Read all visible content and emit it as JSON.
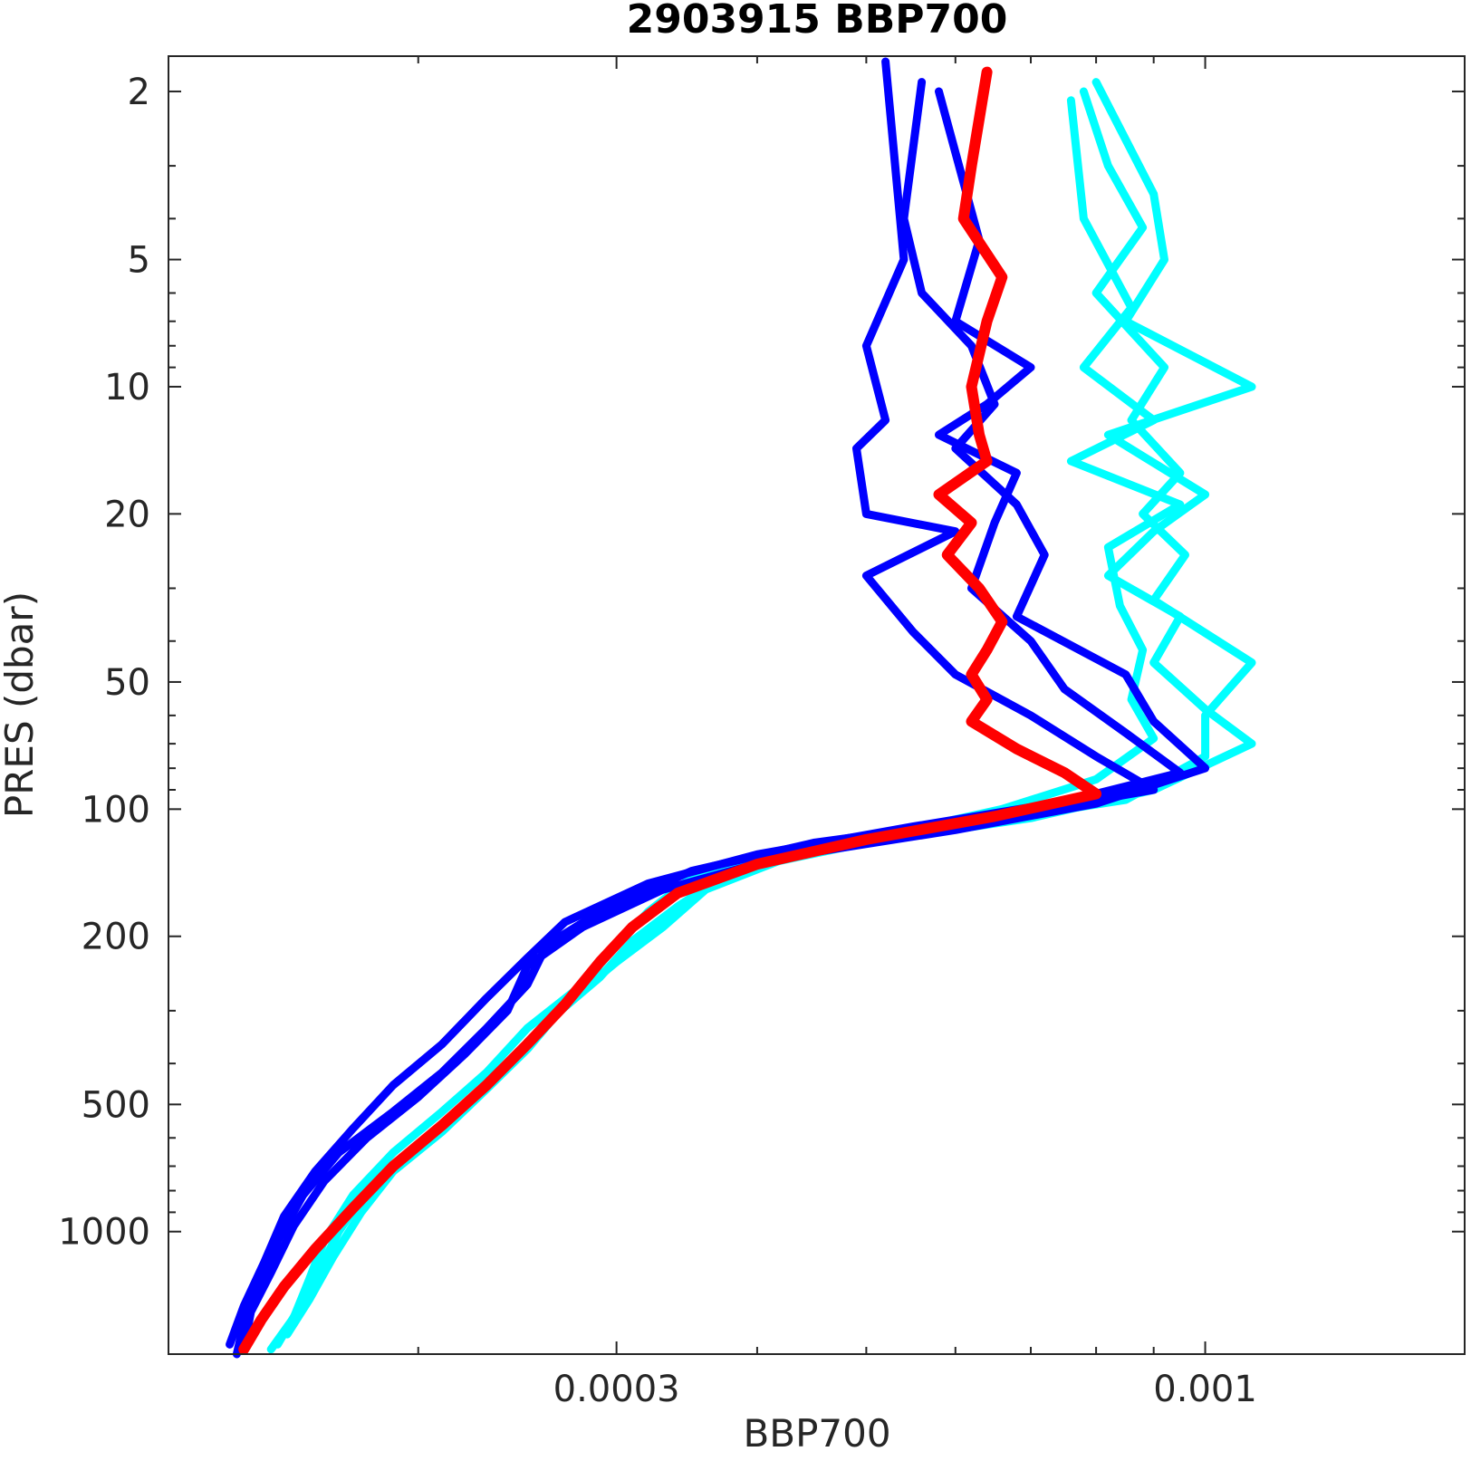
{
  "chart_data": {
    "type": "line",
    "title": "2903915 BBP700",
    "xlabel": "BBP700",
    "ylabel": "PRES (dbar)",
    "xscale": "log",
    "yscale": "log",
    "yreversed": true,
    "xlim": [
      0.00012,
      0.0017
    ],
    "ylim": [
      1.65,
      1950
    ],
    "grid": false,
    "legend": "none",
    "xticks": [
      {
        "value": 0.0003,
        "label": "0.0003"
      },
      {
        "value": 0.001,
        "label": "0.001"
      }
    ],
    "xminor": [
      0.0002,
      0.0004,
      0.0005,
      0.0006,
      0.0007,
      0.0008,
      0.0009
    ],
    "yticks": [
      {
        "value": 2,
        "label": "2"
      },
      {
        "value": 5,
        "label": "5"
      },
      {
        "value": 10,
        "label": "10"
      },
      {
        "value": 20,
        "label": "20"
      },
      {
        "value": 50,
        "label": "50"
      },
      {
        "value": 100,
        "label": "100"
      },
      {
        "value": 200,
        "label": "200"
      },
      {
        "value": 500,
        "label": "500"
      },
      {
        "value": 1000,
        "label": "1000"
      }
    ],
    "yminor": [
      3,
      4,
      6,
      7,
      8,
      9,
      30,
      40,
      60,
      70,
      80,
      90,
      300,
      400,
      600,
      700,
      800,
      900
    ],
    "series": [
      {
        "color": "#00ffff",
        "width": 9,
        "points": [
          [
            0.00078,
            2
          ],
          [
            0.00082,
            3
          ],
          [
            0.00088,
            4.2
          ],
          [
            0.0008,
            6
          ],
          [
            0.00092,
            9
          ],
          [
            0.00086,
            12
          ],
          [
            0.00095,
            16
          ],
          [
            0.00088,
            20
          ],
          [
            0.00096,
            25
          ],
          [
            0.0009,
            32
          ],
          [
            0.0011,
            45
          ],
          [
            0.001,
            60
          ],
          [
            0.001,
            75
          ],
          [
            0.00085,
            95
          ],
          [
            0.0006,
            110
          ],
          [
            0.00045,
            125
          ],
          [
            0.00035,
            145
          ],
          [
            0.00032,
            175
          ],
          [
            0.0003,
            210
          ],
          [
            0.00028,
            260
          ],
          [
            0.00025,
            330
          ],
          [
            0.00023,
            420
          ],
          [
            0.00021,
            520
          ],
          [
            0.00019,
            650
          ],
          [
            0.000175,
            820
          ],
          [
            0.000165,
            1050
          ],
          [
            0.00016,
            1300
          ],
          [
            0.000155,
            1600
          ],
          [
            0.000148,
            1900
          ]
        ]
      },
      {
        "color": "#00ffff",
        "width": 9,
        "points": [
          [
            0.0008,
            1.9
          ],
          [
            0.0009,
            3.5
          ],
          [
            0.00092,
            5
          ],
          [
            0.00085,
            7
          ],
          [
            0.0011,
            10
          ],
          [
            0.00082,
            13
          ],
          [
            0.001,
            18
          ],
          [
            0.0009,
            22
          ],
          [
            0.00082,
            28
          ],
          [
            0.00095,
            35
          ],
          [
            0.0009,
            45
          ],
          [
            0.001,
            58
          ],
          [
            0.0011,
            70
          ],
          [
            0.0009,
            90
          ],
          [
            0.0007,
            105
          ],
          [
            0.0005,
            120
          ],
          [
            0.00038,
            140
          ],
          [
            0.00034,
            170
          ],
          [
            0.00031,
            205
          ],
          [
            0.00029,
            250
          ],
          [
            0.00026,
            320
          ],
          [
            0.00024,
            400
          ],
          [
            0.00022,
            500
          ],
          [
            0.0002,
            640
          ],
          [
            0.00018,
            800
          ],
          [
            0.00017,
            1000
          ],
          [
            0.000163,
            1250
          ],
          [
            0.000156,
            1550
          ],
          [
            0.00015,
            1850
          ]
        ]
      },
      {
        "color": "#00ffff",
        "width": 9,
        "points": [
          [
            0.00076,
            2.1
          ],
          [
            0.00078,
            4
          ],
          [
            0.00086,
            6.5
          ],
          [
            0.00078,
            9
          ],
          [
            0.0009,
            12
          ],
          [
            0.00076,
            15
          ],
          [
            0.00095,
            19
          ],
          [
            0.00082,
            24
          ],
          [
            0.00084,
            33
          ],
          [
            0.00088,
            42
          ],
          [
            0.00086,
            55
          ],
          [
            0.0009,
            68
          ],
          [
            0.0008,
            85
          ],
          [
            0.00066,
            100
          ],
          [
            0.00052,
            115
          ],
          [
            0.00042,
            132
          ],
          [
            0.00036,
            155
          ],
          [
            0.00033,
            190
          ],
          [
            0.0003,
            230
          ],
          [
            0.00027,
            290
          ],
          [
            0.00025,
            370
          ],
          [
            0.00023,
            460
          ],
          [
            0.00021,
            580
          ],
          [
            0.00019,
            720
          ],
          [
            0.000178,
            900
          ],
          [
            0.000168,
            1150
          ],
          [
            0.00016,
            1450
          ],
          [
            0.000153,
            1750
          ]
        ]
      },
      {
        "color": "#0000ff",
        "width": 9,
        "points": [
          [
            0.00052,
            1.7
          ],
          [
            0.00054,
            5
          ],
          [
            0.0005,
            8
          ],
          [
            0.00052,
            12
          ],
          [
            0.00049,
            14
          ],
          [
            0.0005,
            20
          ],
          [
            0.0006,
            22
          ],
          [
            0.0005,
            28
          ],
          [
            0.00055,
            38
          ],
          [
            0.0006,
            48
          ],
          [
            0.0007,
            60
          ],
          [
            0.0008,
            75
          ],
          [
            0.0009,
            90
          ],
          [
            0.00065,
            105
          ],
          [
            0.00045,
            120
          ],
          [
            0.00035,
            140
          ],
          [
            0.00029,
            175
          ],
          [
            0.00026,
            210
          ],
          [
            0.00025,
            260
          ],
          [
            0.00023,
            330
          ],
          [
            0.00021,
            420
          ],
          [
            0.00019,
            520
          ],
          [
            0.00017,
            650
          ],
          [
            0.000158,
            820
          ],
          [
            0.00015,
            1050
          ],
          [
            0.000145,
            1350
          ],
          [
            0.00014,
            1650
          ],
          [
            0.000138,
            1950
          ]
        ]
      },
      {
        "color": "#0000ff",
        "width": 9,
        "points": [
          [
            0.00056,
            1.9
          ],
          [
            0.00054,
            4
          ],
          [
            0.00056,
            6
          ],
          [
            0.00062,
            8
          ],
          [
            0.00065,
            11
          ],
          [
            0.0006,
            14
          ],
          [
            0.00068,
            19
          ],
          [
            0.00072,
            25
          ],
          [
            0.00068,
            35
          ],
          [
            0.00085,
            48
          ],
          [
            0.0009,
            62
          ],
          [
            0.001,
            80
          ],
          [
            0.0008,
            97
          ],
          [
            0.0006,
            112
          ],
          [
            0.00042,
            130
          ],
          [
            0.00033,
            155
          ],
          [
            0.00028,
            190
          ],
          [
            0.00025,
            235
          ],
          [
            0.00024,
            300
          ],
          [
            0.00022,
            380
          ],
          [
            0.0002,
            480
          ],
          [
            0.00018,
            600
          ],
          [
            0.000165,
            760
          ],
          [
            0.000155,
            970
          ],
          [
            0.000148,
            1250
          ],
          [
            0.000142,
            1550
          ],
          [
            0.00014,
            1900
          ]
        ]
      },
      {
        "color": "#0000ff",
        "width": 9,
        "points": [
          [
            0.00058,
            2
          ],
          [
            0.00063,
            4.5
          ],
          [
            0.0006,
            7
          ],
          [
            0.0007,
            9
          ],
          [
            0.00064,
            11
          ],
          [
            0.00058,
            13
          ],
          [
            0.00068,
            16
          ],
          [
            0.00065,
            21
          ],
          [
            0.00062,
            30
          ],
          [
            0.0007,
            40
          ],
          [
            0.00075,
            52
          ],
          [
            0.00085,
            66
          ],
          [
            0.00095,
            82
          ],
          [
            0.00075,
            96
          ],
          [
            0.00055,
            110
          ],
          [
            0.0004,
            128
          ],
          [
            0.00032,
            150
          ],
          [
            0.00027,
            185
          ],
          [
            0.00025,
            225
          ],
          [
            0.00023,
            280
          ],
          [
            0.00021,
            360
          ],
          [
            0.00019,
            450
          ],
          [
            0.000175,
            570
          ],
          [
            0.000162,
            720
          ],
          [
            0.000152,
            920
          ],
          [
            0.000146,
            1180
          ],
          [
            0.00014,
            1500
          ],
          [
            0.000136,
            1850
          ]
        ]
      },
      {
        "color": "#ff0000",
        "width": 12,
        "points": [
          [
            0.00064,
            1.8
          ],
          [
            0.00062,
            3
          ],
          [
            0.00061,
            4
          ],
          [
            0.00066,
            5.5
          ],
          [
            0.00064,
            7
          ],
          [
            0.00062,
            10
          ],
          [
            0.00063,
            13
          ],
          [
            0.00064,
            15
          ],
          [
            0.00058,
            18
          ],
          [
            0.00062,
            21
          ],
          [
            0.00059,
            25
          ],
          [
            0.00063,
            30
          ],
          [
            0.00066,
            36
          ],
          [
            0.00064,
            42
          ],
          [
            0.00062,
            48
          ],
          [
            0.00064,
            55
          ],
          [
            0.00062,
            62
          ],
          [
            0.00068,
            72
          ],
          [
            0.00075,
            82
          ],
          [
            0.0008,
            92
          ],
          [
            0.00065,
            104
          ],
          [
            0.0005,
            118
          ],
          [
            0.0004,
            135
          ],
          [
            0.00034,
            158
          ],
          [
            0.00031,
            190
          ],
          [
            0.00029,
            230
          ],
          [
            0.00027,
            290
          ],
          [
            0.00025,
            360
          ],
          [
            0.00023,
            450
          ],
          [
            0.00021,
            560
          ],
          [
            0.00019,
            700
          ],
          [
            0.000175,
            880
          ],
          [
            0.000162,
            1100
          ],
          [
            0.000152,
            1350
          ],
          [
            0.000145,
            1620
          ],
          [
            0.00014,
            1900
          ]
        ]
      }
    ]
  }
}
